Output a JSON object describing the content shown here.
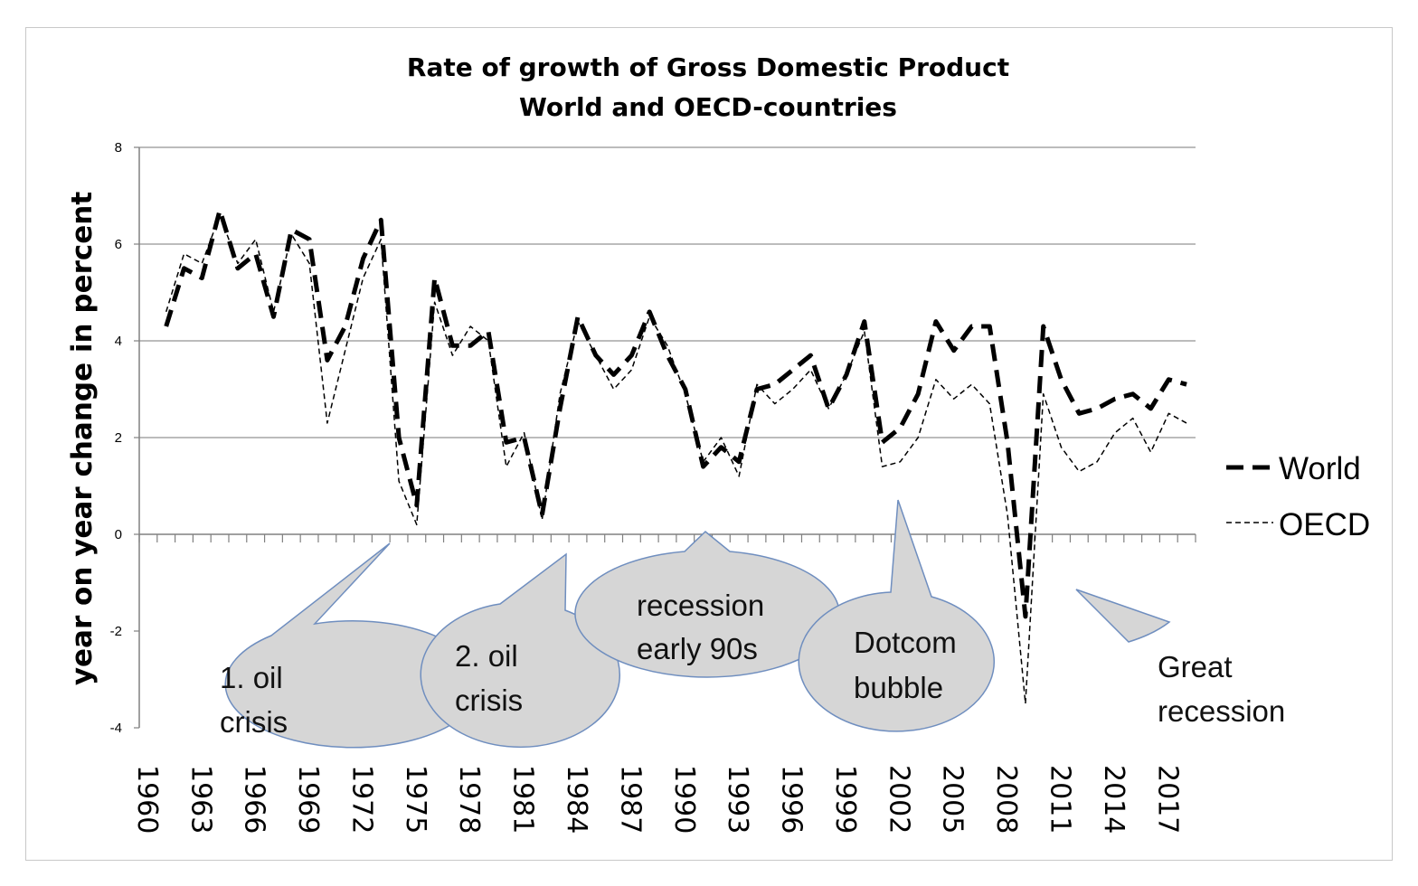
{
  "chart_data": {
    "type": "line",
    "title": [
      "Rate of growth of Gross Domestic Product",
      "World and OECD-countries"
    ],
    "ylabel": "year on year change in percent",
    "xlabel": "",
    "ylim": [
      -4,
      8
    ],
    "yticks": [
      "-4",
      "-2",
      "0",
      "2",
      "4",
      "6",
      "8"
    ],
    "x": [
      1961,
      1962,
      1963,
      1964,
      1965,
      1966,
      1967,
      1968,
      1969,
      1970,
      1971,
      1972,
      1973,
      1974,
      1975,
      1976,
      1977,
      1978,
      1979,
      1980,
      1981,
      1982,
      1983,
      1984,
      1985,
      1986,
      1987,
      1988,
      1989,
      1990,
      1991,
      1992,
      1993,
      1994,
      1995,
      1996,
      1997,
      1998,
      1999,
      2000,
      2001,
      2002,
      2003,
      2004,
      2005,
      2006,
      2007,
      2008,
      2009,
      2010,
      2011,
      2012,
      2013,
      2014,
      2015,
      2016,
      2017,
      2018
    ],
    "xtick_labels": [
      "1960",
      "1963",
      "1966",
      "1969",
      "1972",
      "1975",
      "1978",
      "1981",
      "1984",
      "1987",
      "1990",
      "1993",
      "1996",
      "1999",
      "2002",
      "2005",
      "2008",
      "2011",
      "2014",
      "2017"
    ],
    "series": [
      {
        "name": "World",
        "style": "long-dash",
        "values": [
          4.3,
          5.5,
          5.3,
          6.7,
          5.5,
          5.8,
          4.5,
          6.3,
          6.1,
          3.6,
          4.3,
          5.7,
          6.5,
          2.0,
          0.6,
          5.3,
          3.9,
          3.9,
          4.2,
          1.9,
          2.0,
          0.4,
          2.6,
          4.5,
          3.7,
          3.3,
          3.7,
          4.6,
          3.7,
          3.0,
          1.4,
          1.8,
          1.5,
          3.0,
          3.1,
          3.4,
          3.7,
          2.6,
          3.3,
          4.4,
          1.9,
          2.2,
          2.9,
          4.4,
          3.8,
          4.3,
          4.3,
          1.9,
          -1.7,
          4.3,
          3.2,
          2.5,
          2.6,
          2.8,
          2.9,
          2.6,
          3.2,
          3.1
        ]
      },
      {
        "name": "OECD",
        "style": "short-dash",
        "values": [
          4.6,
          5.8,
          5.6,
          6.6,
          5.6,
          6.1,
          4.6,
          6.2,
          5.6,
          2.3,
          3.8,
          5.3,
          6.1,
          1.1,
          0.2,
          4.8,
          3.7,
          4.3,
          4.0,
          1.4,
          2.1,
          0.3,
          2.9,
          4.4,
          3.7,
          3.0,
          3.4,
          4.5,
          3.9,
          2.9,
          1.5,
          2.0,
          1.2,
          3.1,
          2.7,
          3.0,
          3.4,
          2.6,
          3.3,
          4.2,
          1.4,
          1.5,
          2.0,
          3.2,
          2.8,
          3.1,
          2.7,
          0.4,
          -3.5,
          2.9,
          1.8,
          1.3,
          1.5,
          2.1,
          2.4,
          1.7,
          2.5,
          2.3
        ]
      }
    ],
    "legend": [
      "World",
      "OECD"
    ],
    "annotations": [
      {
        "text": [
          "1. oil",
          "crisis"
        ],
        "points_to_year": 1974
      },
      {
        "text": [
          "2. oil",
          "crisis"
        ],
        "points_to_year": 1983
      },
      {
        "text": [
          "recession",
          "early 90s"
        ],
        "points_to_year": 1992
      },
      {
        "text": [
          "Dotcom",
          "bubble"
        ],
        "points_to_year": 2002
      },
      {
        "text": [
          "Great",
          "recession"
        ],
        "points_to_year": 2011
      }
    ]
  }
}
